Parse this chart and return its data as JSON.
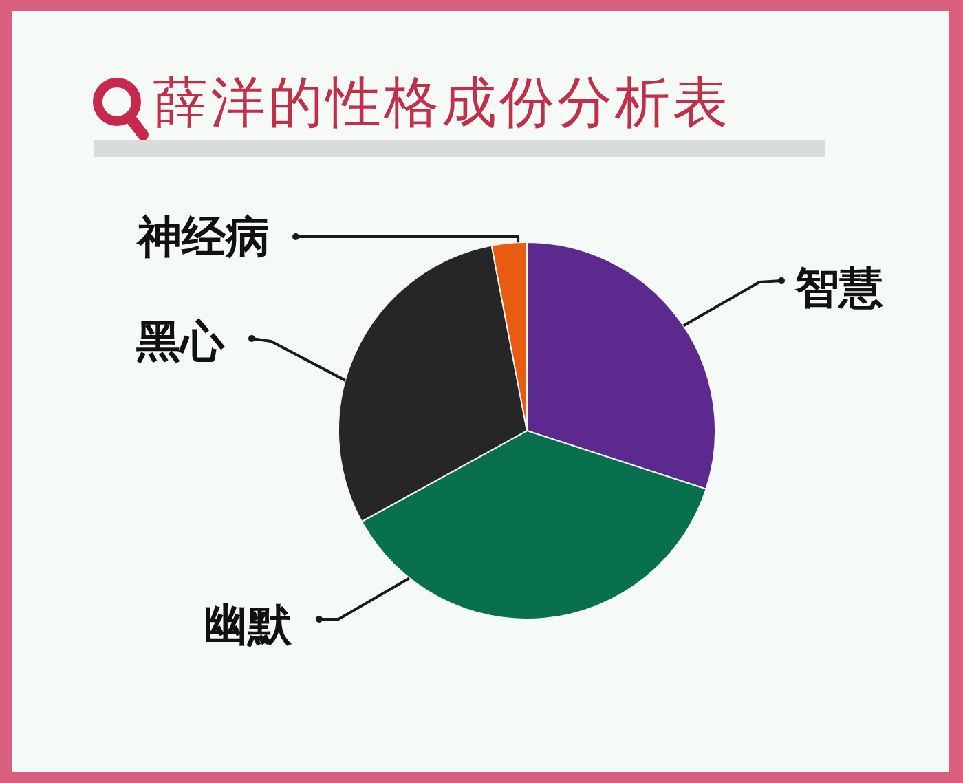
{
  "chart_data": {
    "type": "pie",
    "title": "薛洋的性格成份分析表",
    "categories": [
      "智慧",
      "幽默",
      "黑心",
      "神经病"
    ],
    "values": [
      30,
      37,
      30,
      3
    ],
    "colors": [
      "#5c2a8e",
      "#08704f",
      "#262628",
      "#e85c12"
    ]
  }
}
